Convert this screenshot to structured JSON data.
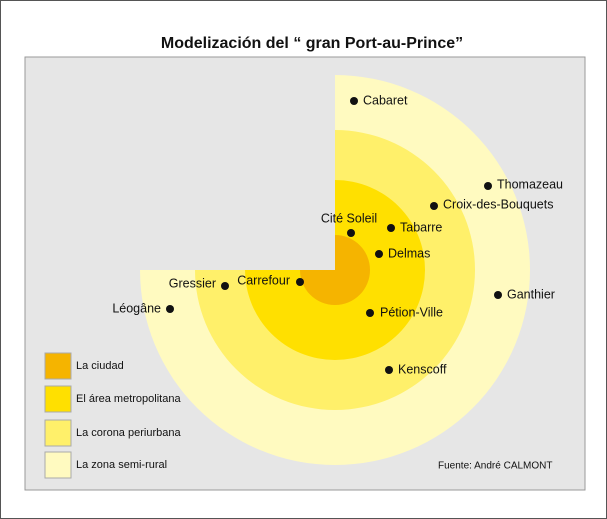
{
  "title": "Modelización del “ gran Port-au-Prince”",
  "places": [
    "Cabaret",
    "Thomazeau",
    "Croix-des-Bouquets",
    "Cité Soleil",
    "Tabarre",
    "Delmas",
    "Carrefour",
    "Gressier",
    "Léogâne",
    "Ganthier",
    "Pétion-Ville",
    "Kenscoff"
  ],
  "legend": [
    "La ciudad",
    "El área metropolitana",
    "La corona periurbana",
    "La zona semi-rural"
  ],
  "source": "Fuente: André CALMONT"
}
